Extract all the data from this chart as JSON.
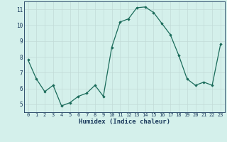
{
  "x": [
    0,
    1,
    2,
    3,
    4,
    5,
    6,
    7,
    8,
    9,
    10,
    11,
    12,
    13,
    14,
    15,
    16,
    17,
    18,
    19,
    20,
    21,
    22,
    23
  ],
  "y": [
    7.8,
    6.6,
    5.8,
    6.2,
    4.9,
    5.1,
    5.5,
    5.7,
    6.2,
    5.5,
    8.6,
    10.2,
    10.4,
    11.1,
    11.15,
    10.8,
    10.1,
    9.4,
    8.1,
    6.6,
    6.2,
    6.4,
    6.2,
    8.8
  ],
  "line_color": "#1a6b5a",
  "marker_color": "#1a6b5a",
  "bg_color": "#d4f0eb",
  "grid_color": "#c2dbd7",
  "axis_bg": "#d4f0eb",
  "xlabel": "Humidex (Indice chaleur)",
  "xlabel_color": "#1a3a5c",
  "tick_color": "#1a3a5c",
  "ylim": [
    4.5,
    11.5
  ],
  "xlim": [
    -0.5,
    23.5
  ],
  "yticks": [
    5,
    6,
    7,
    8,
    9,
    10,
    11
  ],
  "xticks": [
    0,
    1,
    2,
    3,
    4,
    5,
    6,
    7,
    8,
    9,
    10,
    11,
    12,
    13,
    14,
    15,
    16,
    17,
    18,
    19,
    20,
    21,
    22,
    23
  ],
  "figsize": [
    3.2,
    2.0
  ],
  "dpi": 100
}
